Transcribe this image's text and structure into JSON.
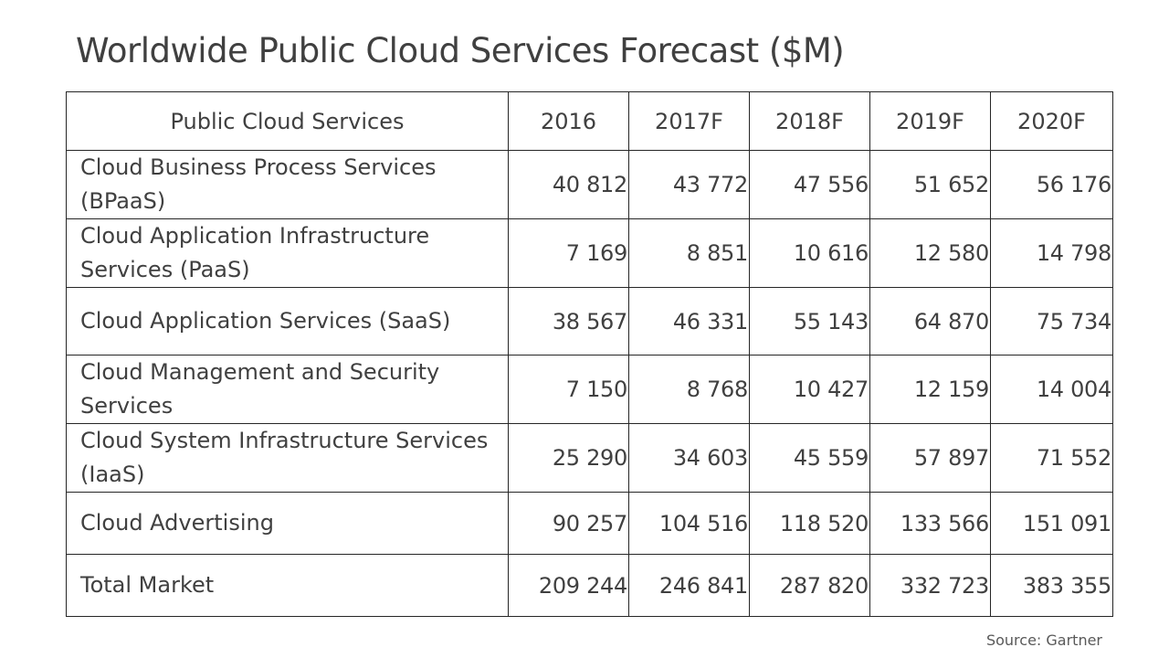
{
  "title": "Worldwide Public Cloud Services Forecast ($M)",
  "table": {
    "headers": [
      "Public Cloud Services",
      "2016",
      "2017F",
      "2018F",
      "2019F",
      "2020F"
    ],
    "rows": [
      {
        "service": "Cloud Business Process Services (BPaaS)",
        "values": [
          "40 812",
          "43 772",
          "47 556",
          "51 652",
          "56 176"
        ]
      },
      {
        "service": "Cloud Application Infrastructure Services (PaaS)",
        "values": [
          "7 169",
          "8 851",
          "10 616",
          "12 580",
          "14 798"
        ]
      },
      {
        "service": "Cloud Application Services (SaaS)",
        "values": [
          "38 567",
          "46 331",
          "55 143",
          "64 870",
          "75 734"
        ]
      },
      {
        "service": "Cloud Management and Security Services",
        "values": [
          "7 150",
          "8 768",
          "10 427",
          "12 159",
          "14 004"
        ]
      },
      {
        "service": "Cloud System Infrastructure Services (IaaS)",
        "values": [
          "25 290",
          "34 603",
          "45 559",
          "57 897",
          "71 552"
        ]
      },
      {
        "service": "Cloud Advertising",
        "values": [
          "90 257",
          "104 516",
          "118 520",
          "133 566",
          "151 091"
        ]
      },
      {
        "service": "Total Market",
        "values": [
          "209 244",
          "246 841",
          "287 820",
          "332 723",
          "383 355"
        ]
      }
    ]
  },
  "source": "Source:  Gartner"
}
